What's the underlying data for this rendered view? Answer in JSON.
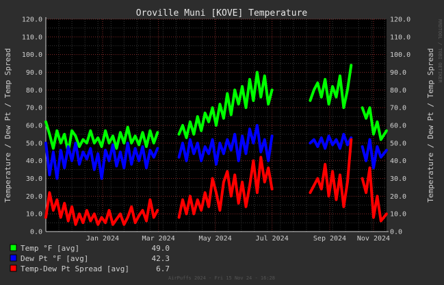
{
  "chart_data": {
    "type": "line",
    "title": "Oroville Muni [KOVE] Temperature",
    "ylabel": "Temperature / Dew Pt / Temp Spread",
    "ylabel_right": "Temperature / Dew Pt / Temp Spread",
    "ylim": [
      0,
      120
    ],
    "yticks": [
      "0.0",
      "10.0",
      "20.0",
      "30.0",
      "40.0",
      "50.0",
      "60.0",
      "70.0",
      "80.0",
      "90.0",
      "100.0",
      "110.0",
      "120.0"
    ],
    "xlim": [
      "2023-11-15",
      "2024-11-15"
    ],
    "xticks": [
      {
        "date": "2024-01-15",
        "label": "Jan 2024"
      },
      {
        "date": "2024-03-15",
        "label": "Mar 2024"
      },
      {
        "date": "2024-05-15",
        "label": "May 2024"
      },
      {
        "date": "2024-07-15",
        "label": "Jul 2024"
      },
      {
        "date": "2024-09-15",
        "label": "Sep 2024"
      },
      {
        "date": "2024-11-01",
        "label": "Nov 2024"
      }
    ],
    "grid": true,
    "legend_position": "bottom-left",
    "series": [
      {
        "name": "Temp °F [avg]",
        "legend_value": "49.0",
        "color": "#00ff00",
        "points": [
          [
            "2023-11-15",
            62
          ],
          [
            "2023-11-19",
            55
          ],
          [
            "2023-11-23",
            47
          ],
          [
            "2023-11-27",
            57
          ],
          [
            "2023-12-01",
            50
          ],
          [
            "2023-12-05",
            55
          ],
          [
            "2023-12-09",
            45
          ],
          [
            "2023-12-13",
            57
          ],
          [
            "2023-12-17",
            54
          ],
          [
            "2023-12-21",
            48
          ],
          [
            "2023-12-25",
            52
          ],
          [
            "2023-12-29",
            50
          ],
          [
            "2024-01-02",
            57
          ],
          [
            "2024-01-06",
            50
          ],
          [
            "2024-01-10",
            53
          ],
          [
            "2024-01-14",
            48
          ],
          [
            "2024-01-18",
            57
          ],
          [
            "2024-01-22",
            50
          ],
          [
            "2024-01-26",
            54
          ],
          [
            "2024-01-30",
            47
          ],
          [
            "2024-02-03",
            56
          ],
          [
            "2024-02-07",
            50
          ],
          [
            "2024-02-11",
            59
          ],
          [
            "2024-02-15",
            50
          ],
          [
            "2024-02-19",
            54
          ],
          [
            "2024-02-23",
            49
          ],
          [
            "2024-02-27",
            56
          ],
          [
            "2024-03-02",
            48
          ],
          [
            "2024-03-06",
            57
          ],
          [
            "2024-03-10",
            50
          ],
          [
            "2024-03-14",
            56
          ],
          null,
          [
            "2024-04-06",
            55
          ],
          [
            "2024-04-10",
            60
          ],
          [
            "2024-04-14",
            53
          ],
          [
            "2024-04-18",
            62
          ],
          [
            "2024-04-22",
            55
          ],
          [
            "2024-04-26",
            65
          ],
          [
            "2024-04-30",
            57
          ],
          [
            "2024-05-04",
            67
          ],
          [
            "2024-05-08",
            62
          ],
          [
            "2024-05-12",
            70
          ],
          [
            "2024-05-16",
            60
          ],
          [
            "2024-05-20",
            72
          ],
          [
            "2024-05-24",
            64
          ],
          [
            "2024-05-28",
            78
          ],
          [
            "2024-06-01",
            66
          ],
          [
            "2024-06-05",
            80
          ],
          [
            "2024-06-09",
            72
          ],
          [
            "2024-06-13",
            82
          ],
          [
            "2024-06-17",
            70
          ],
          [
            "2024-06-21",
            86
          ],
          [
            "2024-06-25",
            74
          ],
          [
            "2024-06-29",
            90
          ],
          [
            "2024-07-03",
            76
          ],
          [
            "2024-07-07",
            88
          ],
          [
            "2024-07-11",
            72
          ],
          [
            "2024-07-15",
            80
          ],
          null,
          [
            "2024-08-25",
            74
          ],
          [
            "2024-08-29",
            80
          ],
          [
            "2024-09-02",
            84
          ],
          [
            "2024-09-06",
            76
          ],
          [
            "2024-09-10",
            86
          ],
          [
            "2024-09-14",
            72
          ],
          [
            "2024-09-18",
            82
          ],
          [
            "2024-09-22",
            76
          ],
          [
            "2024-09-26",
            88
          ],
          [
            "2024-09-30",
            70
          ],
          [
            "2024-10-04",
            80
          ],
          [
            "2024-10-08",
            94
          ],
          null,
          [
            "2024-10-20",
            70
          ],
          [
            "2024-10-24",
            64
          ],
          [
            "2024-10-28",
            70
          ],
          [
            "2024-11-01",
            55
          ],
          [
            "2024-11-05",
            62
          ],
          [
            "2024-11-09",
            52
          ],
          [
            "2024-11-15",
            57
          ]
        ]
      },
      {
        "name": "Dew Pt °F [avg]",
        "legend_value": "42.3",
        "color": "#0000ff",
        "points": [
          [
            "2023-11-15",
            50
          ],
          [
            "2023-11-19",
            32
          ],
          [
            "2023-11-23",
            45
          ],
          [
            "2023-11-27",
            30
          ],
          [
            "2023-12-01",
            46
          ],
          [
            "2023-12-05",
            36
          ],
          [
            "2023-12-09",
            48
          ],
          [
            "2023-12-13",
            40
          ],
          [
            "2023-12-17",
            50
          ],
          [
            "2023-12-21",
            38
          ],
          [
            "2023-12-25",
            45
          ],
          [
            "2023-12-29",
            41
          ],
          [
            "2024-01-02",
            47
          ],
          [
            "2024-01-06",
            35
          ],
          [
            "2024-01-10",
            44
          ],
          [
            "2024-01-14",
            30
          ],
          [
            "2024-01-18",
            46
          ],
          [
            "2024-01-22",
            40
          ],
          [
            "2024-01-26",
            49
          ],
          [
            "2024-01-30",
            37
          ],
          [
            "2024-02-03",
            45
          ],
          [
            "2024-02-07",
            36
          ],
          [
            "2024-02-11",
            50
          ],
          [
            "2024-02-15",
            38
          ],
          [
            "2024-02-19",
            47
          ],
          [
            "2024-02-23",
            40
          ],
          [
            "2024-02-27",
            48
          ],
          [
            "2024-03-02",
            36
          ],
          [
            "2024-03-06",
            46
          ],
          [
            "2024-03-10",
            42
          ],
          [
            "2024-03-14",
            47
          ],
          null,
          [
            "2024-04-06",
            42
          ],
          [
            "2024-04-10",
            50
          ],
          [
            "2024-04-14",
            40
          ],
          [
            "2024-04-18",
            52
          ],
          [
            "2024-04-22",
            44
          ],
          [
            "2024-04-26",
            50
          ],
          [
            "2024-04-30",
            40
          ],
          [
            "2024-05-04",
            48
          ],
          [
            "2024-05-08",
            44
          ],
          [
            "2024-05-12",
            52
          ],
          [
            "2024-05-16",
            38
          ],
          [
            "2024-05-20",
            50
          ],
          [
            "2024-05-24",
            44
          ],
          [
            "2024-05-28",
            52
          ],
          [
            "2024-06-01",
            46
          ],
          [
            "2024-06-05",
            55
          ],
          [
            "2024-06-09",
            40
          ],
          [
            "2024-06-13",
            54
          ],
          [
            "2024-06-17",
            44
          ],
          [
            "2024-06-21",
            58
          ],
          [
            "2024-06-25",
            50
          ],
          [
            "2024-06-29",
            60
          ],
          [
            "2024-07-03",
            45
          ],
          [
            "2024-07-07",
            52
          ],
          [
            "2024-07-11",
            40
          ],
          [
            "2024-07-15",
            54
          ],
          null,
          [
            "2024-08-25",
            50
          ],
          [
            "2024-08-29",
            52
          ],
          [
            "2024-09-02",
            48
          ],
          [
            "2024-09-06",
            53
          ],
          [
            "2024-09-10",
            47
          ],
          [
            "2024-09-14",
            54
          ],
          [
            "2024-09-18",
            49
          ],
          [
            "2024-09-22",
            52
          ],
          [
            "2024-09-26",
            47
          ],
          [
            "2024-09-30",
            55
          ],
          [
            "2024-10-04",
            49
          ],
          [
            "2024-10-08",
            53
          ],
          null,
          [
            "2024-10-20",
            48
          ],
          [
            "2024-10-24",
            40
          ],
          [
            "2024-10-28",
            52
          ],
          [
            "2024-11-01",
            36
          ],
          [
            "2024-11-05",
            48
          ],
          [
            "2024-11-09",
            42
          ],
          [
            "2024-11-15",
            46
          ]
        ]
      },
      {
        "name": "Temp-Dew Pt Spread [avg]",
        "legend_value": "6.7",
        "color": "#ff0000",
        "points": [
          [
            "2023-11-15",
            8
          ],
          [
            "2023-11-19",
            22
          ],
          [
            "2023-11-23",
            12
          ],
          [
            "2023-11-27",
            18
          ],
          [
            "2023-12-01",
            8
          ],
          [
            "2023-12-05",
            16
          ],
          [
            "2023-12-09",
            6
          ],
          [
            "2023-12-13",
            14
          ],
          [
            "2023-12-17",
            4
          ],
          [
            "2023-12-21",
            10
          ],
          [
            "2023-12-25",
            5
          ],
          [
            "2023-12-29",
            12
          ],
          [
            "2024-01-02",
            6
          ],
          [
            "2024-01-06",
            10
          ],
          [
            "2024-01-10",
            4
          ],
          [
            "2024-01-14",
            8
          ],
          [
            "2024-01-18",
            5
          ],
          [
            "2024-01-22",
            12
          ],
          [
            "2024-01-26",
            4
          ],
          [
            "2024-01-30",
            7
          ],
          [
            "2024-02-03",
            10
          ],
          [
            "2024-02-07",
            4
          ],
          [
            "2024-02-11",
            8
          ],
          [
            "2024-02-15",
            14
          ],
          [
            "2024-02-19",
            5
          ],
          [
            "2024-02-23",
            9
          ],
          [
            "2024-02-27",
            12
          ],
          [
            "2024-03-02",
            6
          ],
          [
            "2024-03-06",
            18
          ],
          [
            "2024-03-10",
            8
          ],
          [
            "2024-03-14",
            12
          ],
          null,
          [
            "2024-04-06",
            8
          ],
          [
            "2024-04-10",
            18
          ],
          [
            "2024-04-14",
            10
          ],
          [
            "2024-04-18",
            20
          ],
          [
            "2024-04-22",
            10
          ],
          [
            "2024-04-26",
            18
          ],
          [
            "2024-04-30",
            12
          ],
          [
            "2024-05-04",
            22
          ],
          [
            "2024-05-08",
            14
          ],
          [
            "2024-05-12",
            30
          ],
          [
            "2024-05-16",
            22
          ],
          [
            "2024-05-20",
            12
          ],
          [
            "2024-05-24",
            28
          ],
          [
            "2024-05-28",
            34
          ],
          [
            "2024-06-01",
            20
          ],
          [
            "2024-06-05",
            32
          ],
          [
            "2024-06-09",
            16
          ],
          [
            "2024-06-13",
            28
          ],
          [
            "2024-06-17",
            14
          ],
          [
            "2024-06-21",
            26
          ],
          [
            "2024-06-25",
            40
          ],
          [
            "2024-06-29",
            22
          ],
          [
            "2024-07-03",
            42
          ],
          [
            "2024-07-07",
            28
          ],
          [
            "2024-07-11",
            36
          ],
          [
            "2024-07-15",
            24
          ],
          null,
          [
            "2024-08-25",
            22
          ],
          [
            "2024-08-29",
            26
          ],
          [
            "2024-09-02",
            30
          ],
          [
            "2024-09-06",
            24
          ],
          [
            "2024-09-10",
            38
          ],
          [
            "2024-09-14",
            20
          ],
          [
            "2024-09-18",
            34
          ],
          [
            "2024-09-22",
            18
          ],
          [
            "2024-09-26",
            32
          ],
          [
            "2024-09-30",
            14
          ],
          [
            "2024-10-04",
            28
          ],
          [
            "2024-10-08",
            52
          ],
          null,
          [
            "2024-10-20",
            30
          ],
          [
            "2024-10-24",
            22
          ],
          [
            "2024-10-28",
            36
          ],
          [
            "2024-11-01",
            8
          ],
          [
            "2024-11-05",
            20
          ],
          [
            "2024-11-09",
            6
          ],
          [
            "2024-11-15",
            10
          ]
        ]
      }
    ]
  },
  "footer": "AirPuffs 2024 - Fri 15 Nov 24 - 16:28",
  "watermark": "RRDTOOL / TOBI OETIKER"
}
